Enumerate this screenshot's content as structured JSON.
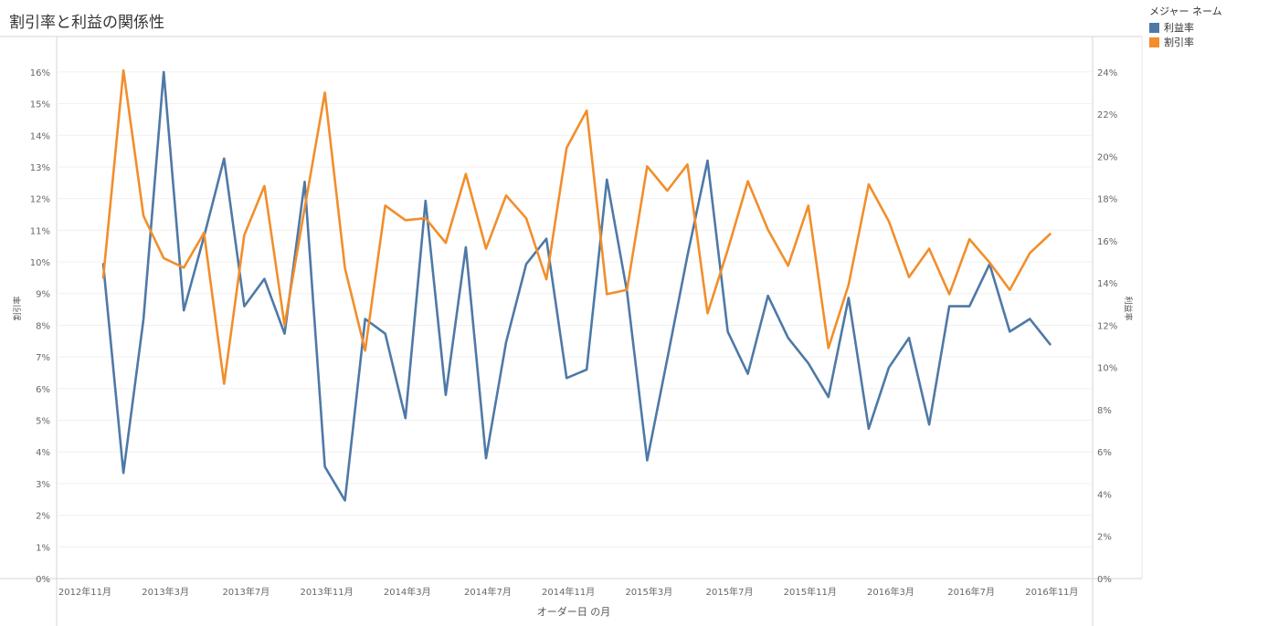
{
  "chart_data": {
    "type": "line",
    "title": "割引率と利益の関係性",
    "xlabel": "オーダー日 の月",
    "ylabel_left": "割引率",
    "ylabel_right": "利益率",
    "x_ticks": [
      "2012年11月",
      "2013年3月",
      "2013年7月",
      "2013年11月",
      "2014年3月",
      "2014年7月",
      "2014年11月",
      "2015年3月",
      "2015年7月",
      "2015年11月",
      "2016年3月",
      "2016年7月",
      "2016年11月"
    ],
    "y_left_ticks": [
      "0%",
      "1%",
      "2%",
      "3%",
      "4%",
      "5%",
      "6%",
      "7%",
      "8%",
      "9%",
      "10%",
      "11%",
      "12%",
      "13%",
      "14%",
      "15%",
      "16%"
    ],
    "y_right_ticks": [
      "0%",
      "2%",
      "4%",
      "6%",
      "8%",
      "10%",
      "12%",
      "14%",
      "16%",
      "18%",
      "20%",
      "22%",
      "24%"
    ],
    "ylim_left": [
      0,
      16.4
    ],
    "ylim_right": [
      0,
      24.6
    ],
    "x": [
      "2013年1月",
      "2013年2月",
      "2013年3月",
      "2013年4月",
      "2013年5月",
      "2013年6月",
      "2013年7月",
      "2013年8月",
      "2013年9月",
      "2013年10月",
      "2013年11月",
      "2013年12月",
      "2014年1月",
      "2014年2月",
      "2014年3月",
      "2014年4月",
      "2014年5月",
      "2014年6月",
      "2014年7月",
      "2014年8月",
      "2014年9月",
      "2014年10月",
      "2014年11月",
      "2014年12月",
      "2015年1月",
      "2015年2月",
      "2015年3月",
      "2015年4月",
      "2015年5月",
      "2015年6月",
      "2015年7月",
      "2015年8月",
      "2015年9月",
      "2015年10月",
      "2015年11月",
      "2015年12月",
      "2016年1月",
      "2016年2月",
      "2016年3月",
      "2016年4月",
      "2016年5月",
      "2016年6月",
      "2016年7月",
      "2016年8月",
      "2016年9月",
      "2016年10月",
      "2016年11月",
      "2016年12月"
    ],
    "legend_title": "メジャー ネーム",
    "legend_position": "top-right",
    "grid": true,
    "series": [
      {
        "name": "利益率",
        "axis": "right",
        "color": "#4e79a7",
        "values": [
          14.9,
          5.0,
          12.3,
          24.0,
          12.7,
          16.2,
          19.9,
          12.9,
          14.2,
          11.6,
          18.8,
          5.3,
          3.7,
          12.3,
          11.6,
          7.6,
          17.9,
          8.7,
          15.7,
          5.7,
          11.2,
          14.9,
          16.1,
          9.5,
          9.9,
          18.9,
          13.6,
          5.6,
          10.4,
          15.3,
          19.8,
          11.7,
          9.7,
          13.4,
          11.4,
          10.2,
          8.6,
          13.3,
          7.1,
          10.0,
          11.4,
          7.3,
          12.9,
          12.9,
          14.9,
          11.7,
          12.3,
          11.1
        ]
      },
      {
        "name": "割引率",
        "axis": "left",
        "color": "#f28e2b",
        "values": [
          9.5,
          16.05,
          11.45,
          10.12,
          9.82,
          10.92,
          6.15,
          10.85,
          12.4,
          8.0,
          11.7,
          15.35,
          9.8,
          7.2,
          11.78,
          11.32,
          11.38,
          10.6,
          12.78,
          10.42,
          12.1,
          11.38,
          9.45,
          13.6,
          14.78,
          8.98,
          9.12,
          13.02,
          12.25,
          13.08,
          8.38,
          10.38,
          12.55,
          11.02,
          9.88,
          11.78,
          7.28,
          9.28,
          12.45,
          11.28,
          9.52,
          10.42,
          8.98,
          10.72,
          9.98,
          9.12,
          10.28,
          10.88
        ]
      }
    ]
  }
}
